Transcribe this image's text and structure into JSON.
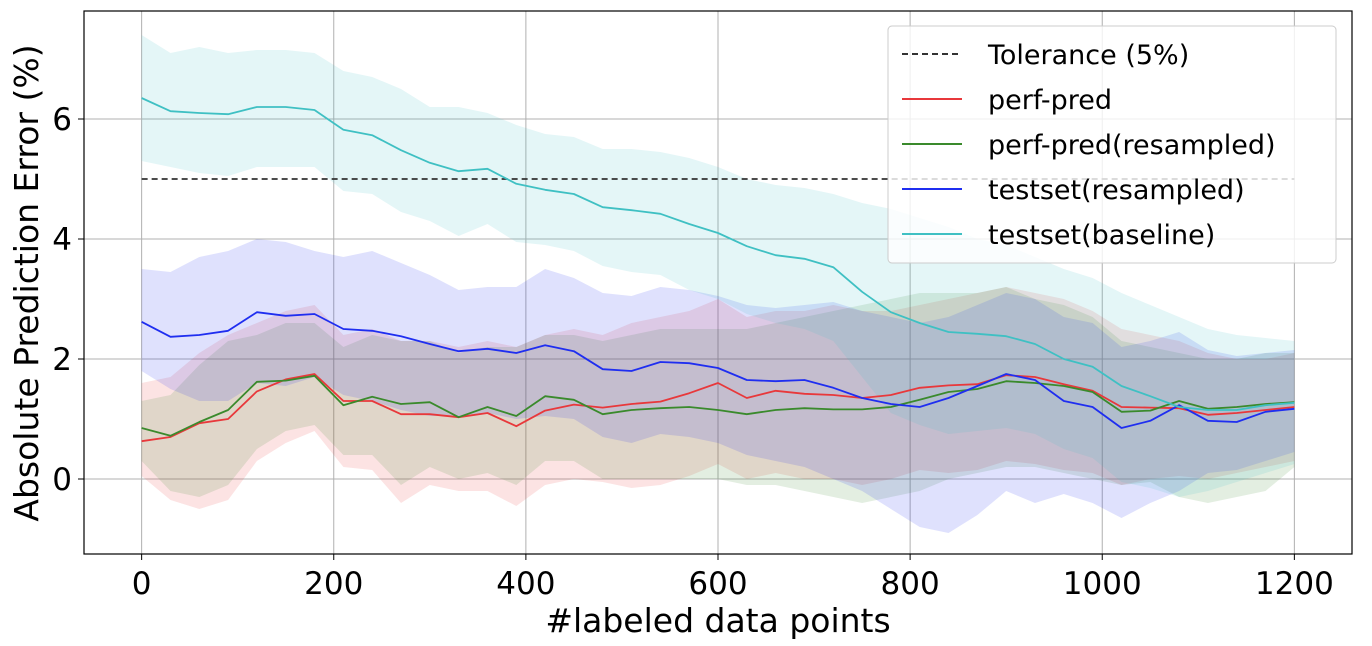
{
  "chart_data": {
    "type": "line",
    "title": "",
    "xlabel": "#labeled data points",
    "ylabel": "Absolute Prediction Error (%)",
    "xlim": [
      -60,
      1260
    ],
    "ylim": [
      -1.25,
      7.8
    ],
    "xticks": [
      0,
      200,
      400,
      600,
      800,
      1000,
      1200
    ],
    "yticks": [
      0,
      2,
      4,
      6
    ],
    "grid": true,
    "legend_position": "top-right",
    "x": [
      0,
      30,
      60,
      90,
      120,
      150,
      180,
      210,
      240,
      270,
      300,
      330,
      360,
      390,
      420,
      450,
      480,
      510,
      540,
      570,
      600,
      630,
      660,
      690,
      720,
      750,
      780,
      810,
      840,
      870,
      900,
      930,
      960,
      990,
      1020,
      1050,
      1080,
      1110,
      1140,
      1170,
      1200
    ],
    "tolerance": {
      "name": "Tolerance (5%)",
      "value": 5,
      "x_range": [
        0,
        1200
      ],
      "color": "#333333"
    },
    "series": [
      {
        "name": "perf-pred",
        "color": "#e8383b",
        "values": [
          0.63,
          0.7,
          0.93,
          1.0,
          1.46,
          1.66,
          1.75,
          1.3,
          1.3,
          1.08,
          1.08,
          1.03,
          1.1,
          0.88,
          1.14,
          1.24,
          1.19,
          1.25,
          1.29,
          1.43,
          1.6,
          1.35,
          1.47,
          1.42,
          1.4,
          1.35,
          1.4,
          1.52,
          1.56,
          1.58,
          1.73,
          1.7,
          1.58,
          1.47,
          1.2,
          1.19,
          1.18,
          1.07,
          1.1,
          1.15,
          1.2
        ],
        "band_upper": [
          1.6,
          1.7,
          2.1,
          2.4,
          2.6,
          2.8,
          2.9,
          2.4,
          2.5,
          2.3,
          2.3,
          2.2,
          2.3,
          2.2,
          2.4,
          2.5,
          2.4,
          2.6,
          2.7,
          2.8,
          3.0,
          2.7,
          2.8,
          2.8,
          2.9,
          2.8,
          2.8,
          2.9,
          3.0,
          3.1,
          3.2,
          3.1,
          3.0,
          2.8,
          2.5,
          2.4,
          2.3,
          2.1,
          2.0,
          2.0,
          2.1
        ],
        "band_lower": [
          0.05,
          -0.35,
          -0.5,
          -0.35,
          0.3,
          0.6,
          0.8,
          0.2,
          0.15,
          -0.4,
          -0.1,
          -0.2,
          -0.2,
          -0.45,
          -0.1,
          0.0,
          -0.05,
          -0.15,
          -0.1,
          0.05,
          0.25,
          0.0,
          0.1,
          0.0,
          0.0,
          -0.1,
          0.0,
          0.15,
          0.1,
          0.15,
          0.3,
          0.25,
          0.15,
          0.1,
          -0.1,
          0.0,
          0.05,
          0.0,
          0.1,
          0.2,
          0.3
        ]
      },
      {
        "name": "perf-pred(resampled)",
        "color": "#3a8a2c",
        "values": [
          0.85,
          0.72,
          0.95,
          1.15,
          1.62,
          1.64,
          1.72,
          1.23,
          1.37,
          1.25,
          1.28,
          1.03,
          1.2,
          1.05,
          1.38,
          1.32,
          1.08,
          1.15,
          1.18,
          1.2,
          1.15,
          1.08,
          1.15,
          1.18,
          1.16,
          1.16,
          1.2,
          1.32,
          1.45,
          1.5,
          1.63,
          1.6,
          1.55,
          1.45,
          1.12,
          1.14,
          1.3,
          1.17,
          1.2,
          1.25,
          1.28
        ],
        "band_upper": [
          1.3,
          1.4,
          1.9,
          2.3,
          2.4,
          2.6,
          2.6,
          2.2,
          2.4,
          2.3,
          2.3,
          2.1,
          2.2,
          2.2,
          2.4,
          2.4,
          2.3,
          2.4,
          2.5,
          2.5,
          2.5,
          2.5,
          2.6,
          2.7,
          2.8,
          2.9,
          3.0,
          3.1,
          3.1,
          3.1,
          3.2,
          3.0,
          2.9,
          2.7,
          2.3,
          2.2,
          2.1,
          2.0,
          2.0,
          2.1,
          2.1
        ],
        "band_lower": [
          0.3,
          -0.2,
          -0.3,
          -0.1,
          0.5,
          0.8,
          0.9,
          0.4,
          0.4,
          -0.1,
          0.2,
          0.0,
          0.1,
          -0.1,
          0.3,
          0.3,
          0.0,
          0.0,
          0.0,
          0.0,
          0.0,
          -0.1,
          -0.1,
          -0.2,
          -0.3,
          -0.4,
          -0.3,
          -0.2,
          0.0,
          0.1,
          0.2,
          0.2,
          0.1,
          0.0,
          -0.1,
          -0.05,
          -0.3,
          -0.4,
          -0.3,
          -0.2,
          0.2
        ]
      },
      {
        "name": "testset(resampled)",
        "color": "#1f2ef0",
        "values": [
          2.62,
          2.37,
          2.4,
          2.47,
          2.78,
          2.72,
          2.75,
          2.5,
          2.47,
          2.38,
          2.25,
          2.13,
          2.17,
          2.1,
          2.23,
          2.13,
          1.83,
          1.8,
          1.95,
          1.93,
          1.85,
          1.65,
          1.63,
          1.65,
          1.52,
          1.35,
          1.25,
          1.2,
          1.35,
          1.55,
          1.75,
          1.65,
          1.3,
          1.2,
          0.85,
          0.97,
          1.23,
          0.97,
          0.95,
          1.12,
          1.17
        ],
        "band_upper": [
          3.5,
          3.45,
          3.7,
          3.8,
          4.0,
          3.95,
          3.8,
          3.7,
          3.8,
          3.6,
          3.4,
          3.15,
          3.2,
          3.2,
          3.5,
          3.35,
          3.1,
          3.05,
          3.2,
          3.15,
          3.05,
          2.9,
          2.85,
          2.9,
          2.95,
          2.8,
          2.7,
          2.6,
          2.7,
          2.9,
          3.1,
          3.0,
          2.7,
          2.6,
          2.2,
          2.3,
          2.45,
          2.15,
          2.05,
          2.1,
          2.15
        ],
        "band_lower": [
          1.8,
          1.5,
          1.3,
          1.3,
          1.6,
          1.55,
          1.7,
          1.4,
          1.3,
          1.15,
          1.05,
          1.05,
          1.1,
          1.0,
          1.05,
          1.0,
          0.7,
          0.6,
          0.75,
          0.7,
          0.6,
          0.4,
          0.3,
          0.2,
          0.0,
          -0.2,
          -0.5,
          -0.8,
          -0.9,
          -0.6,
          -0.2,
          -0.4,
          -0.25,
          -0.4,
          -0.65,
          -0.4,
          -0.2,
          0.1,
          0.15,
          0.3,
          0.45
        ]
      },
      {
        "name": "testset(baseline)",
        "color": "#3fc0c3",
        "values": [
          6.35,
          6.13,
          6.1,
          6.08,
          6.2,
          6.2,
          6.15,
          5.82,
          5.73,
          5.48,
          5.27,
          5.13,
          5.17,
          4.92,
          4.82,
          4.75,
          4.53,
          4.48,
          4.42,
          4.25,
          4.1,
          3.88,
          3.73,
          3.67,
          3.53,
          3.12,
          2.78,
          2.6,
          2.45,
          2.42,
          2.38,
          2.25,
          2.0,
          1.87,
          1.55,
          1.38,
          1.2,
          1.15,
          1.15,
          1.23,
          1.27
        ],
        "band_upper": [
          7.4,
          7.1,
          7.2,
          7.1,
          7.15,
          7.15,
          7.1,
          6.8,
          6.7,
          6.5,
          6.2,
          6.2,
          6.1,
          5.9,
          5.75,
          5.7,
          5.5,
          5.5,
          5.45,
          5.35,
          5.2,
          5.0,
          4.9,
          4.85,
          4.75,
          4.6,
          4.5,
          4.35,
          4.2,
          4.0,
          3.9,
          3.7,
          3.5,
          3.35,
          3.1,
          2.9,
          2.7,
          2.5,
          2.4,
          2.35,
          2.3
        ],
        "band_lower": [
          5.3,
          5.2,
          5.1,
          5.05,
          5.2,
          5.2,
          5.2,
          4.8,
          4.75,
          4.45,
          4.3,
          4.05,
          4.25,
          3.95,
          3.9,
          3.8,
          3.55,
          3.45,
          3.4,
          3.15,
          3.0,
          2.75,
          2.6,
          2.5,
          2.3,
          1.7,
          1.1,
          0.9,
          0.75,
          0.8,
          0.85,
          0.75,
          0.5,
          0.35,
          -0.05,
          -0.15,
          -0.3,
          -0.2,
          -0.05,
          0.1,
          0.25
        ]
      }
    ]
  }
}
